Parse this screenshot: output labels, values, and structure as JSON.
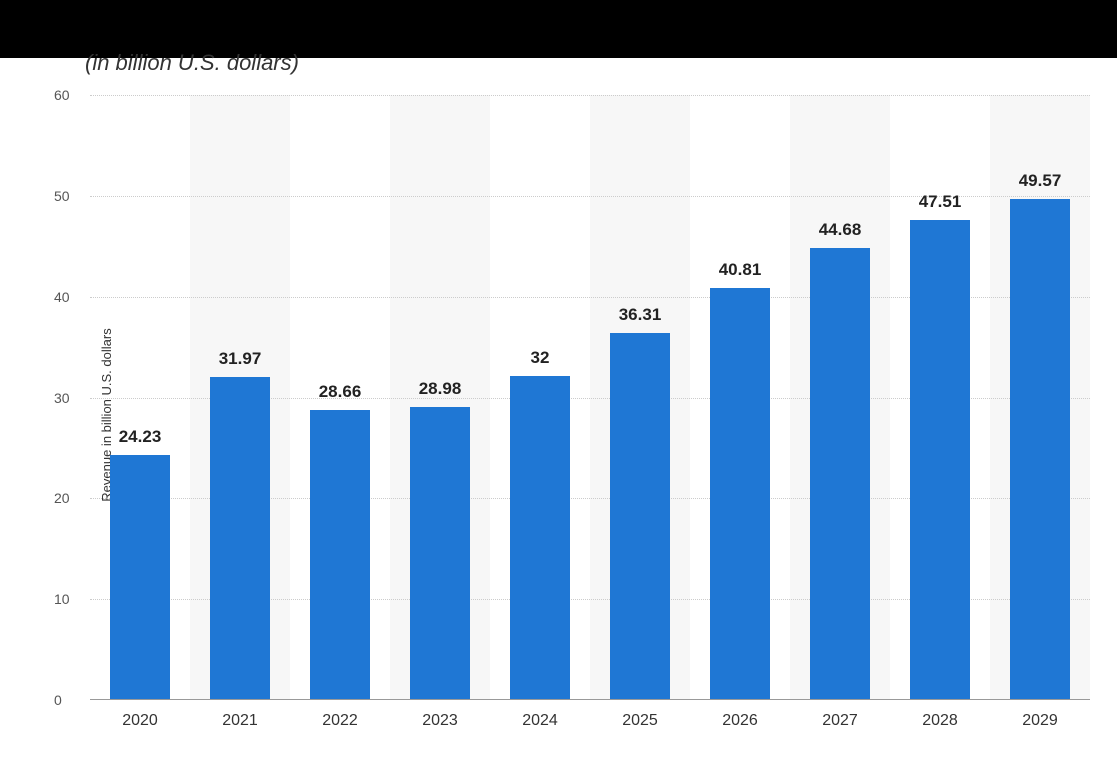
{
  "chart": {
    "type": "bar",
    "subtitle": "(in billion U.S. dollars)",
    "ylabel": "Revenue in billion U.S. dollars",
    "ylabel_fontsize": 13,
    "subtitle_fontsize": 22,
    "categories": [
      "2020",
      "2021",
      "2022",
      "2023",
      "2024",
      "2025",
      "2026",
      "2027",
      "2028",
      "2029"
    ],
    "values": [
      24.23,
      31.97,
      28.66,
      28.98,
      32,
      36.31,
      40.81,
      44.68,
      47.51,
      49.57
    ],
    "value_labels": [
      "24.23",
      "31.97",
      "28.66",
      "28.98",
      "32",
      "36.31",
      "40.81",
      "44.68",
      "47.51",
      "49.57"
    ],
    "bar_color": "#1f77d4",
    "ylim": [
      0,
      60
    ],
    "ytick_step": 10,
    "yticks": [
      0,
      10,
      20,
      30,
      40,
      50,
      60
    ],
    "background_color": "#ffffff",
    "alt_band_color": "#f7f7f7",
    "grid_color": "#cccccc",
    "grid_style": "dotted",
    "axis_color": "#999999",
    "bar_width_ratio": 0.6,
    "label_fontsize": 17,
    "tick_fontsize": 14,
    "xtick_fontsize": 16,
    "top_bar_color": "#000000",
    "top_bar_height": 58
  }
}
